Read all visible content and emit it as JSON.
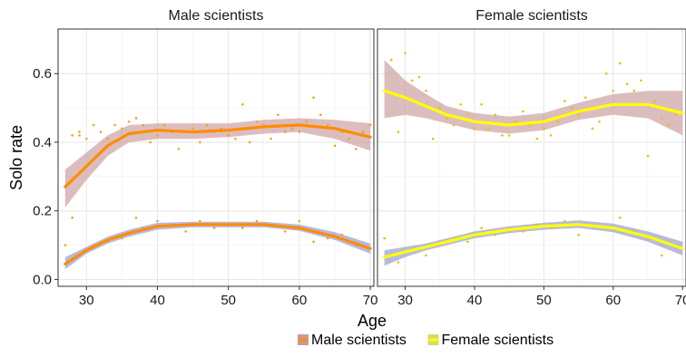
{
  "chart_data": {
    "type": "line",
    "ylabel": "Solo rate",
    "xlabel": "Age",
    "xlim": [
      26,
      70.5
    ],
    "ylim": [
      -0.02,
      0.73
    ],
    "x_ticks": [
      30,
      40,
      50,
      60,
      70
    ],
    "y_ticks": [
      0.0,
      0.2,
      0.4,
      0.6
    ],
    "grid": true,
    "legend_position": "bottom",
    "legend": [
      {
        "label": "Male scientists",
        "color": "#c99a9a"
      },
      {
        "label": "Female scientists",
        "color": "#d8d86c"
      }
    ],
    "panels": [
      {
        "title": "Male scientists",
        "line_color": "#ff8c00",
        "point_color": "#f2a11e",
        "series": [
          {
            "band_color": "#c99a9a",
            "x": [
              27,
              30,
              33,
              36,
              40,
              45,
              50,
              55,
              60,
              65,
              70
            ],
            "y": [
              0.27,
              0.33,
              0.39,
              0.425,
              0.435,
              0.43,
              0.435,
              0.445,
              0.45,
              0.44,
              0.415
            ],
            "lower": [
              0.21,
              0.29,
              0.36,
              0.4,
              0.41,
              0.41,
              0.415,
              0.425,
              0.43,
              0.41,
              0.375
            ],
            "upper": [
              0.32,
              0.37,
              0.42,
              0.45,
              0.455,
              0.455,
              0.455,
              0.465,
              0.47,
              0.465,
              0.455
            ],
            "points": [
              [
                28,
                0.42
              ],
              [
                29,
                0.42
              ],
              [
                30,
                0.41
              ],
              [
                31,
                0.45
              ],
              [
                32,
                0.43
              ],
              [
                33,
                0.41
              ],
              [
                34,
                0.45
              ],
              [
                35,
                0.44
              ],
              [
                36,
                0.46
              ],
              [
                37,
                0.47
              ],
              [
                38,
                0.45
              ],
              [
                39,
                0.4
              ],
              [
                40,
                0.42
              ],
              [
                41,
                0.45
              ],
              [
                42,
                0.43
              ],
              [
                43,
                0.38
              ],
              [
                44,
                0.43
              ],
              [
                45,
                0.44
              ],
              [
                46,
                0.4
              ],
              [
                47,
                0.45
              ],
              [
                48,
                0.43
              ],
              [
                49,
                0.44
              ],
              [
                50,
                0.42
              ],
              [
                51,
                0.41
              ],
              [
                52,
                0.51
              ],
              [
                53,
                0.4
              ],
              [
                54,
                0.46
              ],
              [
                55,
                0.45
              ],
              [
                56,
                0.41
              ],
              [
                57,
                0.48
              ],
              [
                58,
                0.43
              ],
              [
                59,
                0.44
              ],
              [
                60,
                0.43
              ],
              [
                61,
                0.46
              ],
              [
                62,
                0.53
              ],
              [
                63,
                0.48
              ],
              [
                64,
                0.45
              ],
              [
                65,
                0.39
              ],
              [
                66,
                0.43
              ],
              [
                67,
                0.41
              ],
              [
                68,
                0.38
              ],
              [
                69,
                0.43
              ],
              [
                70,
                0.45
              ],
              [
                29,
                0.43
              ]
            ]
          },
          {
            "band_color": "#8f96cc",
            "x": [
              27,
              30,
              33,
              36,
              40,
              45,
              50,
              55,
              60,
              65,
              70
            ],
            "y": [
              0.045,
              0.085,
              0.115,
              0.135,
              0.155,
              0.16,
              0.16,
              0.16,
              0.15,
              0.125,
              0.09
            ],
            "lower": [
              0.03,
              0.075,
              0.105,
              0.125,
              0.145,
              0.152,
              0.152,
              0.152,
              0.142,
              0.115,
              0.075
            ],
            "upper": [
              0.065,
              0.095,
              0.125,
              0.145,
              0.165,
              0.168,
              0.168,
              0.168,
              0.16,
              0.138,
              0.105
            ],
            "points": [
              [
                27,
                0.1
              ],
              [
                28,
                0.18
              ],
              [
                29,
                0.07
              ],
              [
                31,
                0.1
              ],
              [
                33,
                0.11
              ],
              [
                35,
                0.12
              ],
              [
                37,
                0.18
              ],
              [
                38,
                0.15
              ],
              [
                40,
                0.17
              ],
              [
                42,
                0.16
              ],
              [
                44,
                0.14
              ],
              [
                46,
                0.17
              ],
              [
                48,
                0.15
              ],
              [
                50,
                0.16
              ],
              [
                52,
                0.15
              ],
              [
                54,
                0.17
              ],
              [
                56,
                0.16
              ],
              [
                58,
                0.14
              ],
              [
                60,
                0.17
              ],
              [
                62,
                0.11
              ],
              [
                64,
                0.12
              ],
              [
                66,
                0.13
              ],
              [
                68,
                0.1
              ],
              [
                70,
                0.09
              ]
            ]
          }
        ]
      },
      {
        "title": "Female scientists",
        "line_color": "#ffff00",
        "point_color": "#e8c000",
        "series": [
          {
            "band_color": "#c99a9a",
            "x": [
              27,
              30,
              33,
              36,
              40,
              45,
              50,
              55,
              60,
              65,
              70
            ],
            "y": [
              0.55,
              0.53,
              0.505,
              0.48,
              0.46,
              0.45,
              0.46,
              0.49,
              0.51,
              0.51,
              0.485
            ],
            "lower": [
              0.47,
              0.48,
              0.47,
              0.455,
              0.435,
              0.425,
              0.435,
              0.465,
              0.48,
              0.47,
              0.42
            ],
            "upper": [
              0.64,
              0.58,
              0.54,
              0.505,
              0.485,
              0.475,
              0.485,
              0.515,
              0.54,
              0.55,
              0.55
            ],
            "points": [
              [
                28,
                0.64
              ],
              [
                29,
                0.43
              ],
              [
                30,
                0.66
              ],
              [
                31,
                0.58
              ],
              [
                32,
                0.59
              ],
              [
                33,
                0.55
              ],
              [
                34,
                0.41
              ],
              [
                35,
                0.5
              ],
              [
                36,
                0.47
              ],
              [
                37,
                0.45
              ],
              [
                38,
                0.51
              ],
              [
                39,
                0.48
              ],
              [
                40,
                0.44
              ],
              [
                41,
                0.51
              ],
              [
                42,
                0.44
              ],
              [
                43,
                0.48
              ],
              [
                44,
                0.42
              ],
              [
                45,
                0.42
              ],
              [
                46,
                0.46
              ],
              [
                47,
                0.49
              ],
              [
                48,
                0.45
              ],
              [
                49,
                0.41
              ],
              [
                50,
                0.44
              ],
              [
                51,
                0.42
              ],
              [
                52,
                0.46
              ],
              [
                53,
                0.52
              ],
              [
                54,
                0.5
              ],
              [
                55,
                0.48
              ],
              [
                56,
                0.53
              ],
              [
                57,
                0.44
              ],
              [
                58,
                0.46
              ],
              [
                59,
                0.6
              ],
              [
                60,
                0.55
              ],
              [
                61,
                0.63
              ],
              [
                62,
                0.57
              ],
              [
                63,
                0.55
              ],
              [
                64,
                0.58
              ],
              [
                65,
                0.36
              ],
              [
                66,
                0.52
              ],
              [
                67,
                0.47
              ],
              [
                68,
                0.45
              ],
              [
                69,
                0.48
              ]
            ]
          },
          {
            "band_color": "#8f96cc",
            "x": [
              27,
              30,
              33,
              36,
              40,
              45,
              50,
              55,
              60,
              65,
              70
            ],
            "y": [
              0.065,
              0.08,
              0.095,
              0.11,
              0.13,
              0.145,
              0.155,
              0.16,
              0.15,
              0.125,
              0.09
            ],
            "lower": [
              0.04,
              0.065,
              0.085,
              0.1,
              0.12,
              0.135,
              0.145,
              0.15,
              0.138,
              0.11,
              0.07
            ],
            "upper": [
              0.085,
              0.095,
              0.105,
              0.12,
              0.14,
              0.155,
              0.165,
              0.172,
              0.163,
              0.14,
              0.11
            ],
            "points": [
              [
                27,
                0.12
              ],
              [
                28,
                0.07
              ],
              [
                29,
                0.05
              ],
              [
                31,
                0.09
              ],
              [
                33,
                0.07
              ],
              [
                35,
                0.1
              ],
              [
                37,
                0.12
              ],
              [
                39,
                0.11
              ],
              [
                41,
                0.15
              ],
              [
                43,
                0.13
              ],
              [
                45,
                0.15
              ],
              [
                47,
                0.14
              ],
              [
                49,
                0.16
              ],
              [
                51,
                0.15
              ],
              [
                53,
                0.17
              ],
              [
                55,
                0.13
              ],
              [
                57,
                0.16
              ],
              [
                59,
                0.15
              ],
              [
                61,
                0.18
              ],
              [
                63,
                0.14
              ],
              [
                65,
                0.12
              ],
              [
                67,
                0.07
              ],
              [
                69,
                0.1
              ],
              [
                70,
                0.09
              ]
            ]
          }
        ]
      }
    ]
  }
}
